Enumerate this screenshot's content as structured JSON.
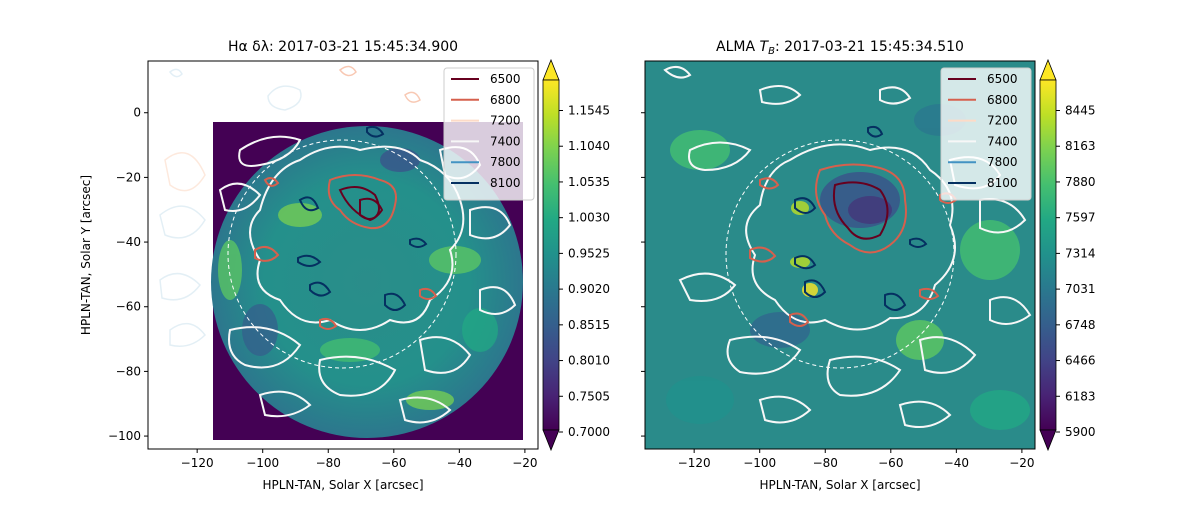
{
  "chart_data": [
    {
      "type": "heatmap",
      "title": "Hα δλ: 2017-03-21 15:45:34.900",
      "xlabel": "HPLN-TAN, Solar X [arcsec]",
      "ylabel": "HPLN-TAN, Solar Y [arcsec]",
      "xlim": [
        -135,
        -16
      ],
      "ylim": [
        -104,
        16
      ],
      "x_ticks": [
        -120,
        -100,
        -80,
        -60,
        -40,
        -20
      ],
      "y_ticks": [
        0,
        -20,
        -40,
        -60,
        -80,
        -100
      ],
      "grid": false,
      "legend_position": "top-right",
      "colormap": "viridis",
      "colorbar": {
        "min": 0.7,
        "max": 1.21,
        "ticks": [
          "1.1545",
          "1.1040",
          "1.0535",
          "1.0030",
          "0.9525",
          "0.9020",
          "0.8515",
          "0.8010",
          "0.7505",
          "0.7000"
        ]
      },
      "contour_levels": [
        {
          "name": "6500",
          "color": "#67001f"
        },
        {
          "name": "6800",
          "color": "#d6604d"
        },
        {
          "name": "7200",
          "color": "#fddbc7"
        },
        {
          "name": "7400",
          "color": "#f7f7f7"
        },
        {
          "name": "7800",
          "color": "#4393c3"
        },
        {
          "name": "8100",
          "color": "#053061"
        }
      ]
    },
    {
      "type": "heatmap",
      "title": "ALMA T_B: 2017-03-21 15:45:34.510",
      "xlabel": "HPLN-TAN, Solar X [arcsec]",
      "ylabel": "",
      "xlim": [
        -135,
        -16
      ],
      "ylim": [
        -104,
        16
      ],
      "x_ticks": [
        -120,
        -100,
        -80,
        -60,
        -40,
        -20
      ],
      "y_ticks": [
        0,
        -20,
        -40,
        -60,
        -80,
        -100
      ],
      "grid": false,
      "legend_position": "top-right",
      "colormap": "viridis",
      "colorbar": {
        "min": 5900,
        "max": 8700,
        "ticks": [
          "8445",
          "8163",
          "7880",
          "7597",
          "7314",
          "7031",
          "6748",
          "6466",
          "6183",
          "5900"
        ]
      },
      "contour_levels": [
        {
          "name": "6500",
          "color": "#67001f"
        },
        {
          "name": "6800",
          "color": "#d6604d"
        },
        {
          "name": "7200",
          "color": "#fddbc7"
        },
        {
          "name": "7400",
          "color": "#f7f7f7"
        },
        {
          "name": "7800",
          "color": "#4393c3"
        },
        {
          "name": "8100",
          "color": "#053061"
        }
      ]
    }
  ],
  "labels": {
    "left_title": "Hα δλ: 2017-03-21 15:45:34.900",
    "right_title_prefix": "ALMA ",
    "right_title_T": "T",
    "right_title_sub": "B",
    "right_title_suffix": ": 2017-03-21 15:45:34.510"
  }
}
